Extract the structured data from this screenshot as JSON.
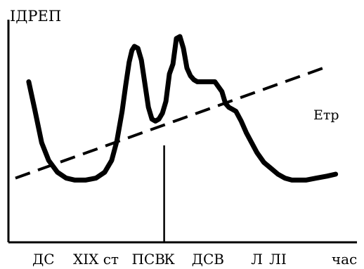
{
  "chart_data": {
    "type": "line",
    "ylabel": "ІДРЕП",
    "xlabel": "час",
    "x_range": [
      0,
      100
    ],
    "y_range": [
      0,
      100
    ],
    "grid": false,
    "x_ticks": [
      {
        "label": "ДС",
        "x": 10
      },
      {
        "label": "XIX ст",
        "x": 25
      },
      {
        "label": "ПСВ",
        "x": 40
      },
      {
        "label": "К",
        "x": 46
      },
      {
        "label": "ДСВ",
        "x": 57
      },
      {
        "label": "Л",
        "x": 71
      },
      {
        "label": "ЛІ",
        "x": 77
      },
      {
        "label": "час",
        "x": 96
      }
    ],
    "marker": {
      "x": 44.5,
      "name": "К"
    },
    "series": [
      {
        "style": "solid",
        "x": [
          5.8,
          7.5,
          9.5,
          11.5,
          14,
          16.5,
          19,
          22,
          25,
          27.5,
          29.5,
          31,
          32.5,
          33.5,
          34.5,
          35.3,
          36,
          37,
          38,
          39,
          40,
          41,
          42,
          43,
          44,
          45,
          46,
          47,
          48,
          49,
          50,
          51,
          52,
          53,
          54,
          55,
          57,
          59,
          61,
          62,
          63,
          64,
          65,
          66.5,
          68,
          69.5,
          71,
          73,
          75,
          77,
          79,
          81,
          83,
          85,
          88,
          91,
          93.5
        ],
        "y": [
          77,
          63,
          46,
          37,
          31,
          28,
          27,
          27,
          28,
          31,
          37,
          47,
          62,
          75,
          87,
          93,
          95,
          94,
          88,
          76,
          64,
          58,
          57,
          58,
          61,
          67,
          81,
          86,
          99,
          100,
          94,
          84,
          80,
          78,
          77,
          77,
          77,
          77,
          72,
          66,
          64,
          63,
          62,
          57,
          51,
          46,
          41,
          36,
          33,
          30,
          28,
          27,
          27,
          27,
          28,
          29,
          30
        ]
      },
      {
        "name": "Етр",
        "style": "dashed",
        "x": [
          2,
          90
        ],
        "y": [
          28,
          84
        ]
      }
    ]
  }
}
